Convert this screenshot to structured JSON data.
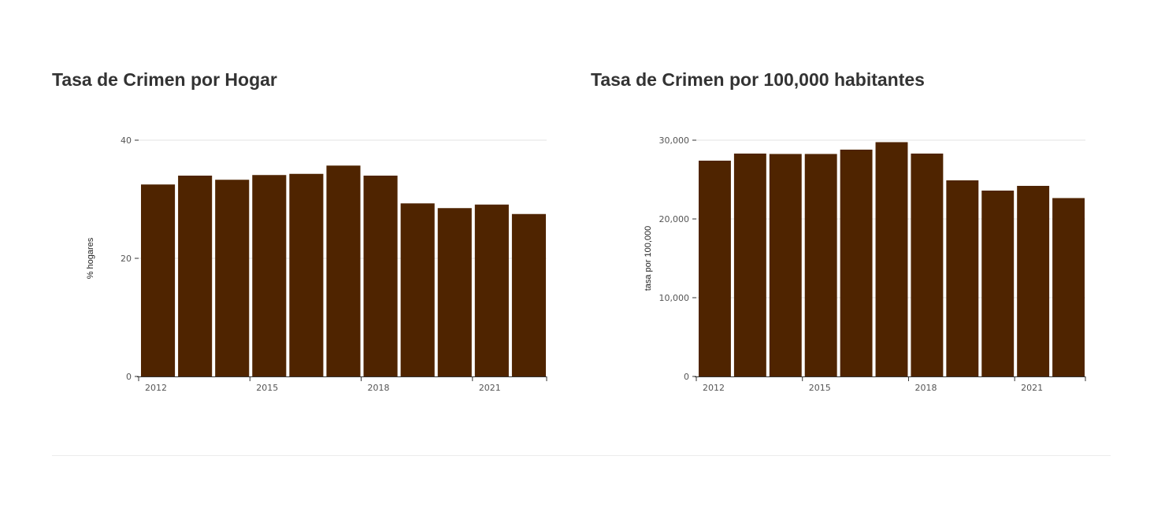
{
  "colors": {
    "bar": "#4f2400",
    "grid": "#e3e3e3",
    "axis": "#333333",
    "title": "#333333"
  },
  "chart_data": [
    {
      "type": "bar",
      "title": "Tasa de Crimen por Hogar",
      "xlabel": "",
      "ylabel": "% hogares",
      "categories": [
        2012,
        2013,
        2014,
        2015,
        2016,
        2017,
        2018,
        2019,
        2020,
        2021,
        2022
      ],
      "x_ticks": [
        2012,
        2015,
        2018,
        2021
      ],
      "values": [
        32.5,
        34.0,
        33.3,
        34.1,
        34.3,
        35.7,
        34.0,
        29.3,
        28.5,
        29.1,
        27.5
      ],
      "ylim": [
        0,
        40
      ],
      "y_ticks": [
        0,
        20,
        40
      ],
      "y_tick_labels": [
        "0",
        "20",
        "40"
      ],
      "grid": true
    },
    {
      "type": "bar",
      "title": "Tasa de Crimen por 100,000 habitantes",
      "xlabel": "",
      "ylabel": "tasa por 100,000",
      "categories": [
        2012,
        2013,
        2014,
        2015,
        2016,
        2017,
        2018,
        2019,
        2020,
        2021,
        2022
      ],
      "x_ticks": [
        2012,
        2015,
        2018,
        2021
      ],
      "values": [
        27400,
        28300,
        28250,
        28250,
        28800,
        29750,
        28300,
        24900,
        23600,
        24200,
        22650
      ],
      "ylim": [
        0,
        30000
      ],
      "y_ticks": [
        0,
        10000,
        20000,
        30000
      ],
      "y_tick_labels": [
        "0",
        "10,000",
        "20,000",
        "30,000"
      ],
      "grid": true
    }
  ]
}
